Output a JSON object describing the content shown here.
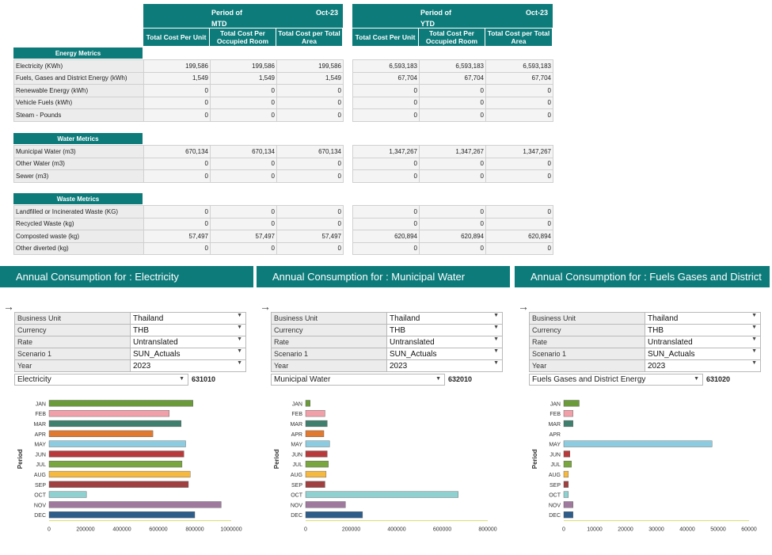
{
  "mtd": {
    "period_label": "Period of",
    "period_type": "MTD",
    "period_value": "Oct-23",
    "columns": [
      "Total Cost Per Unit",
      "Total Cost Per Occupied Room",
      "Total Cost per Total Area"
    ]
  },
  "ytd": {
    "period_label": "Period of",
    "period_type": "YTD",
    "period_value": "Oct-23",
    "columns": [
      "Total Cost Per Unit",
      "Total Cost Per Occupied Room",
      "Total Cost per Total Area"
    ]
  },
  "sections": [
    {
      "title": "Energy Metrics",
      "rows": [
        {
          "label": "Electricity (KWh)",
          "mtd": [
            "199,586",
            "199,586",
            "199,586"
          ],
          "ytd": [
            "6,593,183",
            "6,593,183",
            "6,593,183"
          ]
        },
        {
          "label": "Fuels, Gases and District Energy (kWh)",
          "mtd": [
            "1,549",
            "1,549",
            "1,549"
          ],
          "ytd": [
            "67,704",
            "67,704",
            "67,704"
          ]
        },
        {
          "label": "Renewable Energy (kWh)",
          "mtd": [
            "0",
            "0",
            "0"
          ],
          "ytd": [
            "0",
            "0",
            "0"
          ]
        },
        {
          "label": "Vehicle Fuels (kWh)",
          "mtd": [
            "0",
            "0",
            "0"
          ],
          "ytd": [
            "0",
            "0",
            "0"
          ]
        },
        {
          "label": "Steam - Pounds",
          "mtd": [
            "0",
            "0",
            "0"
          ],
          "ytd": [
            "0",
            "0",
            "0"
          ]
        }
      ]
    },
    {
      "title": "Water Metrics",
      "rows": [
        {
          "label": "Municipal Water (m3)",
          "mtd": [
            "670,134",
            "670,134",
            "670,134"
          ],
          "ytd": [
            "1,347,267",
            "1,347,267",
            "1,347,267"
          ]
        },
        {
          "label": "Other Water (m3)",
          "mtd": [
            "0",
            "0",
            "0"
          ],
          "ytd": [
            "0",
            "0",
            "0"
          ]
        },
        {
          "label": "Sewer (m3)",
          "mtd": [
            "0",
            "0",
            "0"
          ],
          "ytd": [
            "0",
            "0",
            "0"
          ]
        }
      ]
    },
    {
      "title": "Waste Metrics",
      "rows": [
        {
          "label": "Landfilled or Incinerated Waste (KG)",
          "mtd": [
            "0",
            "0",
            "0"
          ],
          "ytd": [
            "0",
            "0",
            "0"
          ]
        },
        {
          "label": "Recycled Waste (kg)",
          "mtd": [
            "0",
            "0",
            "0"
          ],
          "ytd": [
            "0",
            "0",
            "0"
          ]
        },
        {
          "label": "Composted waste (kg)",
          "mtd": [
            "57,497",
            "57,497",
            "57,497"
          ],
          "ytd": [
            "620,894",
            "620,894",
            "620,894"
          ]
        },
        {
          "label": "Other diverted (kg)",
          "mtd": [
            "0",
            "0",
            "0"
          ],
          "ytd": [
            "0",
            "0",
            "0"
          ]
        }
      ]
    }
  ],
  "param_labels": [
    "Business Unit",
    "Currency",
    "Rate",
    "Scenario 1",
    "Year"
  ],
  "panels": [
    {
      "title": "Annual Consumption for : Electricity",
      "params": [
        "Thailand",
        "THB",
        "Untranslated",
        "SUN_Actuals",
        "2023"
      ],
      "metric": "Electricity",
      "account": "631010"
    },
    {
      "title": "Annual Consumption for : Municipal Water",
      "params": [
        "Thailand",
        "THB",
        "Untranslated",
        "SUN_Actuals",
        "2023"
      ],
      "metric": "Municipal Water",
      "account": "632010"
    },
    {
      "title": "Annual Consumption for : Fuels Gases and District",
      "params": [
        "Thailand",
        "THB",
        "Untranslated",
        "SUN_Actuals",
        "2023"
      ],
      "metric": "Fuels Gases and District Energy",
      "account": "631020"
    }
  ],
  "icons": {
    "arrow": "arrow-right-icon",
    "dropdown": "chevron-down-icon"
  },
  "colors": {
    "teal": "#0e7b7b"
  },
  "chart_data": [
    {
      "type": "bar",
      "orientation": "horizontal",
      "ylabel": "Period",
      "categories": [
        "JAN",
        "FEB",
        "MAR",
        "APR",
        "MAY",
        "JUN",
        "JUL",
        "AUG",
        "SEP",
        "OCT",
        "NOV",
        "DEC"
      ],
      "values": [
        790000,
        660000,
        725000,
        570000,
        750000,
        740000,
        730000,
        775000,
        765000,
        205000,
        945000,
        800000
      ],
      "bar_colors": [
        "#6a9a3a",
        "#f0a0a8",
        "#3f7f6e",
        "#e07a30",
        "#8ccbe0",
        "#b83a3a",
        "#7aa640",
        "#f5b840",
        "#a04040",
        "#8fd0d0",
        "#a07a9e",
        "#2f5d8a"
      ],
      "xlim": [
        0,
        1000000
      ],
      "xticks": [
        "0",
        "200000",
        "400000",
        "600000",
        "800000",
        "1000000"
      ]
    },
    {
      "type": "bar",
      "orientation": "horizontal",
      "ylabel": "Period",
      "categories": [
        "JAN",
        "FEB",
        "MAR",
        "APR",
        "MAY",
        "JUN",
        "JUL",
        "AUG",
        "SEP",
        "OCT",
        "NOV",
        "DEC"
      ],
      "values": [
        20000,
        85000,
        95000,
        80000,
        105000,
        95000,
        100000,
        90000,
        85000,
        670000,
        175000,
        250000
      ],
      "bar_colors": [
        "#6a9a3a",
        "#f0a0a8",
        "#3f7f6e",
        "#e07a30",
        "#8ccbe0",
        "#b83a3a",
        "#7aa640",
        "#f5b840",
        "#a04040",
        "#8fd0d0",
        "#a07a9e",
        "#2f5d8a"
      ],
      "xlim": [
        0,
        800000
      ],
      "xticks": [
        "0",
        "200000",
        "400000",
        "600000",
        "800000"
      ]
    },
    {
      "type": "bar",
      "orientation": "horizontal",
      "ylabel": "Period",
      "categories": [
        "JAN",
        "FEB",
        "MAR",
        "APR",
        "MAY",
        "JUN",
        "JUL",
        "AUG",
        "SEP",
        "OCT",
        "NOV",
        "DEC"
      ],
      "values": [
        5000,
        3000,
        3000,
        0,
        48000,
        2000,
        2500,
        1500,
        1500,
        1500,
        3000,
        3000
      ],
      "bar_colors": [
        "#6a9a3a",
        "#f0a0a8",
        "#3f7f6e",
        "#e07a30",
        "#8ccbe0",
        "#b83a3a",
        "#7aa640",
        "#f5b840",
        "#a04040",
        "#8fd0d0",
        "#a07a9e",
        "#2f5d8a"
      ],
      "xlim": [
        0,
        60000
      ],
      "xticks": [
        "0",
        "10000",
        "20000",
        "30000",
        "40000",
        "50000",
        "60000"
      ]
    }
  ]
}
